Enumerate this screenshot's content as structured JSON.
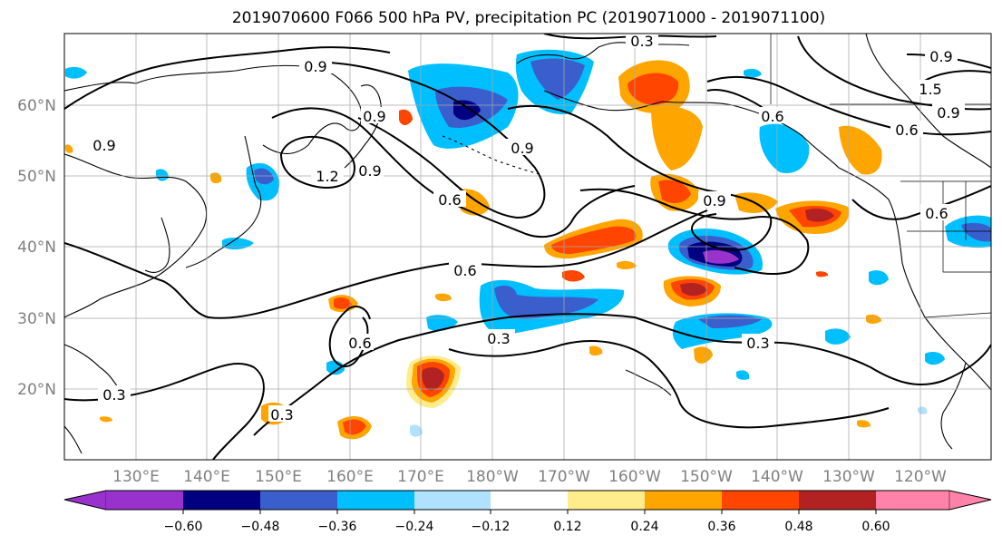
{
  "title": "2019070600 F066 500 hPa PV, precipitation PC (2019071000 - 2019071100)",
  "map": {
    "lat_labels": [
      "60°N",
      "50°N",
      "40°N",
      "30°N",
      "20°N"
    ],
    "lon_labels": [
      "130°E",
      "140°E",
      "150°E",
      "160°E",
      "170°E",
      "180°W",
      "170°W",
      "160°W",
      "150°W",
      "140°W",
      "130°W",
      "120°W"
    ],
    "pv_contour_labels": [
      "0.3",
      "0.6",
      "0.9",
      "1.2",
      "1.5"
    ]
  },
  "colorbar": {
    "tick_labels": [
      "−0.60",
      "−0.48",
      "−0.36",
      "−0.24",
      "−0.12",
      "0.12",
      "0.24",
      "0.36",
      "0.48",
      "0.60"
    ],
    "colors": [
      "#9932cc",
      "#000080",
      "#3a5fcd",
      "#00bfff",
      "#b0e2ff",
      "#ffffff",
      "#ffec8b",
      "#ffa500",
      "#ff4500",
      "#b22222",
      "#ff82ab"
    ],
    "extend": "both"
  }
}
